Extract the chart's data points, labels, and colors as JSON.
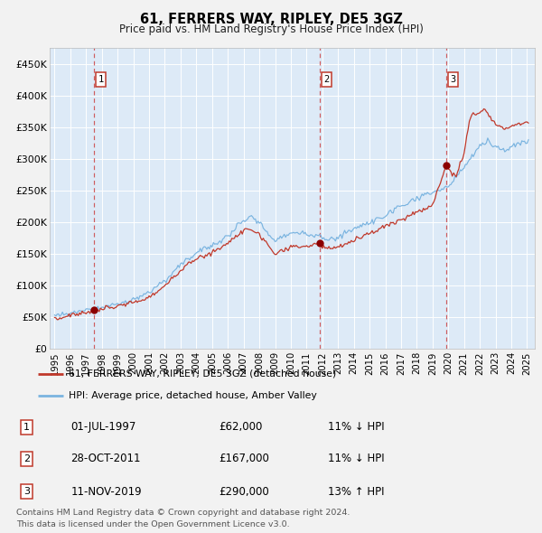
{
  "title": "61, FERRERS WAY, RIPLEY, DE5 3GZ",
  "subtitle": "Price paid vs. HM Land Registry's House Price Index (HPI)",
  "fig_bg": "#f2f2f2",
  "chart_bg": "#ddeaf7",
  "hpi_line_color": "#7ab4e0",
  "price_line_color": "#c0392b",
  "marker_color": "#8b0000",
  "vline_color": "#cc4444",
  "grid_color": "#ffffff",
  "transactions": [
    {
      "num": 1,
      "date_label": "01-JUL-1997",
      "date_x": 1997.5,
      "price": 62000,
      "hpi_pct": "11% ↓ HPI"
    },
    {
      "num": 2,
      "date_label": "28-OCT-2011",
      "date_x": 2011.83,
      "price": 167000,
      "hpi_pct": "11% ↓ HPI"
    },
    {
      "num": 3,
      "date_label": "11-NOV-2019",
      "date_x": 2019.86,
      "price": 290000,
      "hpi_pct": "13% ↑ HPI"
    }
  ],
  "ylim": [
    0,
    475000
  ],
  "xlim": [
    1994.7,
    2025.5
  ],
  "yticks": [
    0,
    50000,
    100000,
    150000,
    200000,
    250000,
    300000,
    350000,
    400000,
    450000
  ],
  "ytick_labels": [
    "£0",
    "£50K",
    "£100K",
    "£150K",
    "£200K",
    "£250K",
    "£300K",
    "£350K",
    "£400K",
    "£450K"
  ],
  "xticks": [
    1995,
    1996,
    1997,
    1998,
    1999,
    2000,
    2001,
    2002,
    2003,
    2004,
    2005,
    2006,
    2007,
    2008,
    2009,
    2010,
    2011,
    2012,
    2013,
    2014,
    2015,
    2016,
    2017,
    2018,
    2019,
    2020,
    2021,
    2022,
    2023,
    2024,
    2025
  ],
  "legend_line1": "61, FERRERS WAY, RIPLEY, DE5 3GZ (detached house)",
  "legend_line2": "HPI: Average price, detached house, Amber Valley",
  "footer": "Contains HM Land Registry data © Crown copyright and database right 2024.\nThis data is licensed under the Open Government Licence v3.0."
}
